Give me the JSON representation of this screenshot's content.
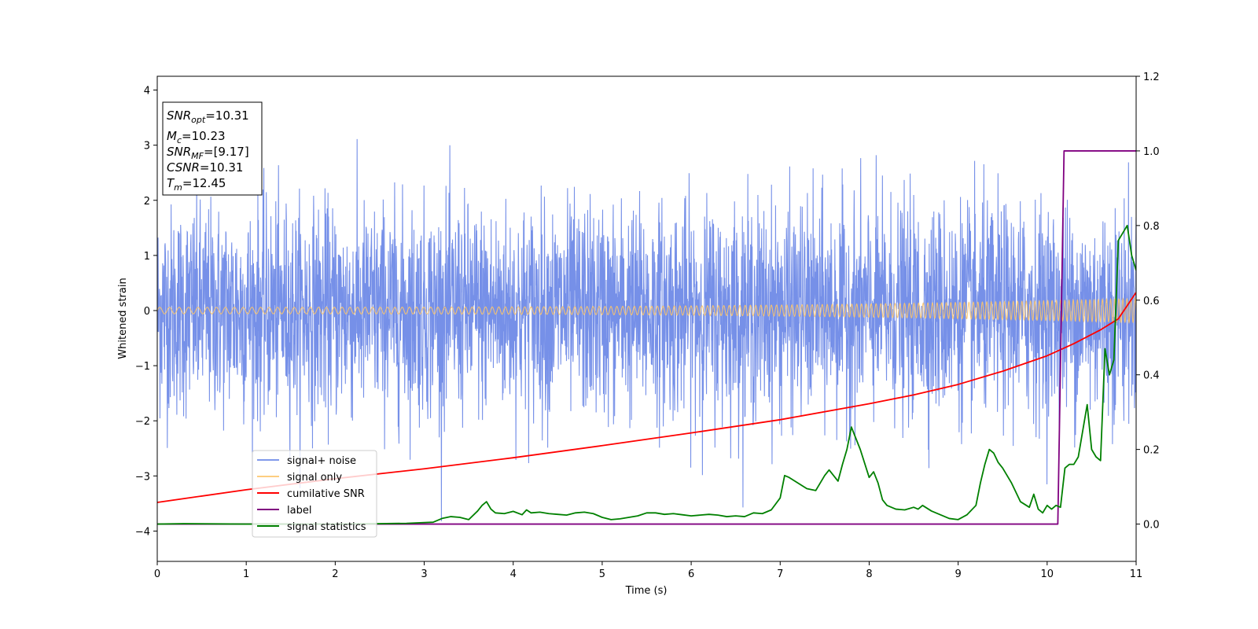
{
  "chart_data": {
    "type": "line",
    "title": "",
    "xlabel": "Time (s)",
    "ylabel": "Whitened strain",
    "y2label": "",
    "xlim": [
      0,
      11
    ],
    "ylim": [
      -4.55,
      4.25
    ],
    "y2lim": [
      -0.1,
      1.2
    ],
    "x_ticks": [
      0,
      1,
      2,
      3,
      4,
      5,
      6,
      7,
      8,
      9,
      10,
      11
    ],
    "y_ticks": [
      -4,
      -3,
      -2,
      -1,
      0,
      1,
      2,
      3,
      4
    ],
    "y2_ticks": [
      0.0,
      0.2,
      0.4,
      0.6,
      0.8,
      1.0,
      1.2
    ],
    "y_tick_labels": [
      "−4",
      "−3",
      "−2",
      "−1",
      "0",
      "1",
      "2",
      "3",
      "4"
    ],
    "y2_tick_labels": [
      "0.0",
      "0.2",
      "0.4",
      "0.6",
      "0.8",
      "1.0",
      "1.2"
    ],
    "grid": false,
    "legend_position": "lower-left",
    "series": [
      {
        "name": "signal+ noise",
        "color": "#6a87e6",
        "axis": "left",
        "kind": "noise",
        "sigma": 1.0,
        "x_range": [
          0,
          11
        ]
      },
      {
        "name": "signal only",
        "color": "#fdc56a",
        "axis": "left",
        "kind": "chirp",
        "amplitude_start": 0.06,
        "amplitude_end": 0.22,
        "x_range": [
          0,
          11
        ]
      },
      {
        "name": "cumilative SNR",
        "color": "#ff0000",
        "axis": "left",
        "x": [
          0,
          1,
          2,
          3,
          4,
          5,
          6,
          7,
          8,
          8.5,
          9,
          9.5,
          10,
          10.3,
          10.6,
          10.8,
          11
        ],
        "y": [
          -3.48,
          -3.25,
          -3.05,
          -2.87,
          -2.67,
          -2.45,
          -2.22,
          -1.98,
          -1.69,
          -1.53,
          -1.34,
          -1.1,
          -0.82,
          -0.6,
          -0.35,
          -0.15,
          0.33
        ]
      },
      {
        "name": "label",
        "color": "#800080",
        "axis": "right",
        "x": [
          0,
          10.12,
          10.19,
          11
        ],
        "y": [
          0.0,
          0.0,
          1.0,
          1.0
        ]
      },
      {
        "name": "signal statistics",
        "color": "#008000",
        "axis": "right",
        "x": [
          0,
          0.3,
          1,
          2,
          2.5,
          2.8,
          3.0,
          3.1,
          3.2,
          3.3,
          3.4,
          3.5,
          3.6,
          3.65,
          3.7,
          3.75,
          3.8,
          3.9,
          4.0,
          4.1,
          4.15,
          4.2,
          4.3,
          4.4,
          4.5,
          4.6,
          4.7,
          4.8,
          4.9,
          5.0,
          5.1,
          5.2,
          5.3,
          5.4,
          5.5,
          5.6,
          5.7,
          5.8,
          5.9,
          6.0,
          6.1,
          6.2,
          6.3,
          6.4,
          6.5,
          6.6,
          6.7,
          6.8,
          6.9,
          7.0,
          7.05,
          7.1,
          7.2,
          7.3,
          7.4,
          7.5,
          7.55,
          7.6,
          7.65,
          7.7,
          7.75,
          7.8,
          7.9,
          8.0,
          8.05,
          8.1,
          8.15,
          8.2,
          8.3,
          8.4,
          8.5,
          8.55,
          8.6,
          8.7,
          8.8,
          8.9,
          9.0,
          9.1,
          9.2,
          9.25,
          9.3,
          9.35,
          9.4,
          9.45,
          9.5,
          9.6,
          9.7,
          9.8,
          9.85,
          9.9,
          9.95,
          10.0,
          10.05,
          10.1,
          10.15,
          10.2,
          10.25,
          10.3,
          10.35,
          10.4,
          10.45,
          10.5,
          10.55,
          10.6,
          10.65,
          10.7,
          10.75,
          10.8,
          10.85,
          10.9,
          10.95,
          11.0
        ],
        "y": [
          0.0,
          0.001,
          0.0,
          0.0,
          0.001,
          0.002,
          0.004,
          0.005,
          0.015,
          0.02,
          0.018,
          0.012,
          0.035,
          0.05,
          0.06,
          0.04,
          0.03,
          0.028,
          0.034,
          0.025,
          0.038,
          0.03,
          0.032,
          0.028,
          0.026,
          0.024,
          0.03,
          0.032,
          0.028,
          0.018,
          0.012,
          0.014,
          0.018,
          0.022,
          0.03,
          0.03,
          0.026,
          0.028,
          0.025,
          0.022,
          0.024,
          0.026,
          0.024,
          0.02,
          0.022,
          0.02,
          0.03,
          0.028,
          0.038,
          0.07,
          0.13,
          0.125,
          0.11,
          0.095,
          0.09,
          0.13,
          0.145,
          0.13,
          0.115,
          0.16,
          0.2,
          0.26,
          0.2,
          0.125,
          0.14,
          0.11,
          0.065,
          0.05,
          0.04,
          0.038,
          0.045,
          0.04,
          0.05,
          0.035,
          0.025,
          0.015,
          0.012,
          0.025,
          0.05,
          0.11,
          0.16,
          0.2,
          0.19,
          0.165,
          0.15,
          0.11,
          0.06,
          0.045,
          0.08,
          0.04,
          0.03,
          0.05,
          0.04,
          0.05,
          0.045,
          0.15,
          0.16,
          0.16,
          0.18,
          0.25,
          0.32,
          0.2,
          0.18,
          0.17,
          0.47,
          0.4,
          0.44,
          0.76,
          0.78,
          0.8,
          0.72,
          0.68
        ]
      }
    ],
    "annotation_box": {
      "position": "top-left",
      "lines": [
        {
          "main": "SNR",
          "sub": "opt",
          "rest": "=10.31"
        },
        {
          "main": "M",
          "sub": "c",
          "rest": "=10.23"
        },
        {
          "main": "SNR",
          "sub": "MF",
          "rest": "=[9.17]"
        },
        {
          "main": "CSNR",
          "sub": "",
          "rest": "=10.31"
        },
        {
          "main": "T",
          "sub": "m",
          "rest": "=12.45"
        }
      ]
    }
  }
}
